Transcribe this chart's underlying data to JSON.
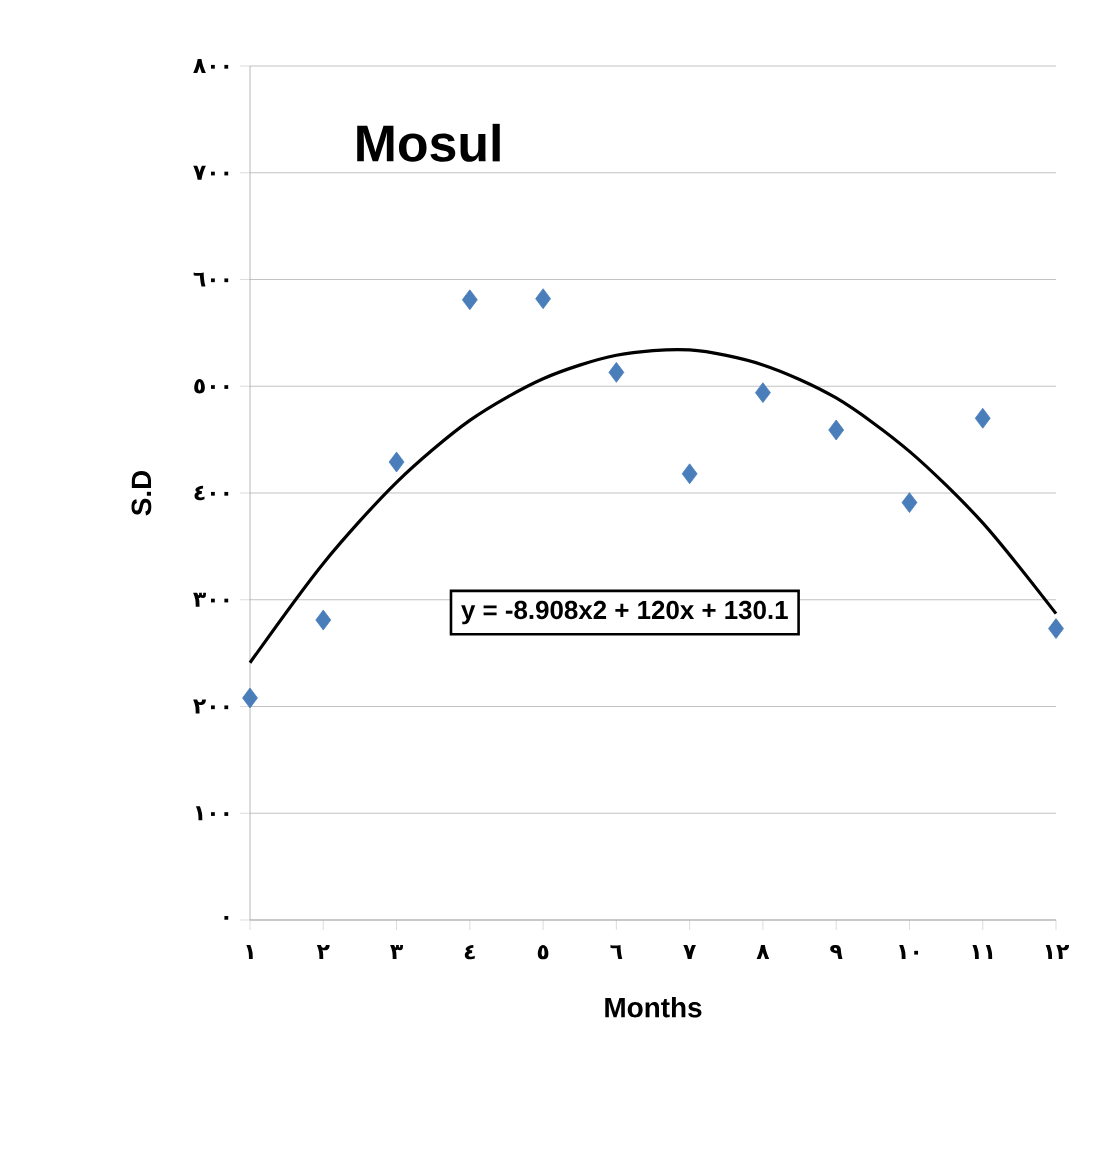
{
  "chart_data": {
    "type": "scatter",
    "title": "Mosul",
    "xlabel": "Months",
    "ylabel": "S.D",
    "x": [
      1,
      2,
      3,
      4,
      5,
      6,
      7,
      8,
      9,
      10,
      11,
      12
    ],
    "series": [
      {
        "marker": "diamond",
        "color": "#4a7ebb",
        "values": [
          208,
          281,
          429,
          581,
          582,
          513,
          418,
          494,
          459,
          391,
          470,
          273
        ]
      },
      {
        "type": "line",
        "marker": "none",
        "line_style": "solid",
        "color": "#000000",
        "values": [
          241,
          334,
          410,
          468,
          507,
          529,
          534,
          520,
          489,
          439,
          372,
          287
        ]
      }
    ],
    "annotations": [
      "y = -8.908x2 + 120x + 130.1"
    ],
    "xlim": [
      1,
      12
    ],
    "xticks": [
      {
        "value": 1,
        "label": "١"
      },
      {
        "value": 2,
        "label": "٢"
      },
      {
        "value": 3,
        "label": "٣"
      },
      {
        "value": 4,
        "label": "٤"
      },
      {
        "value": 5,
        "label": "٥"
      },
      {
        "value": 6,
        "label": "٦"
      },
      {
        "value": 7,
        "label": "٧"
      },
      {
        "value": 8,
        "label": "٨"
      },
      {
        "value": 9,
        "label": "٩"
      },
      {
        "value": 10,
        "label": "١٠"
      },
      {
        "value": 11,
        "label": "١١"
      },
      {
        "value": 12,
        "label": "١٢"
      }
    ],
    "ylim": [
      0,
      800
    ],
    "yticks": [
      {
        "value": 0,
        "label": "٠"
      },
      {
        "value": 100,
        "label": "١٠٠"
      },
      {
        "value": 200,
        "label": "٢٠٠"
      },
      {
        "value": 300,
        "label": "٣٠٠"
      },
      {
        "value": 400,
        "label": "٤٠٠"
      },
      {
        "value": 500,
        "label": "٥٠٠"
      },
      {
        "value": 600,
        "label": "٦٠٠"
      },
      {
        "value": 700,
        "label": "٧٠٠"
      },
      {
        "value": 800,
        "label": "٨٠٠"
      }
    ],
    "grid": "y"
  }
}
